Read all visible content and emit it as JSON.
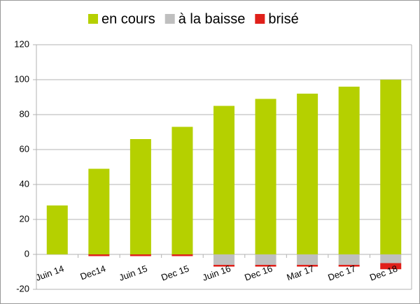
{
  "chart_data": {
    "type": "bar",
    "stacked": true,
    "categories": [
      "Juin 14",
      "Dec14",
      "Juin 15",
      "Dec 15",
      "Juin 16",
      "Dec 16",
      "Mar 17",
      "Dec 17",
      "Dec 18"
    ],
    "series": [
      {
        "name": "en cours",
        "color": "#b5d000",
        "values": [
          28,
          49,
          66,
          73,
          85,
          89,
          92,
          96,
          100
        ]
      },
      {
        "name": "à la baisse",
        "color": "#bfbfbf",
        "values": [
          0,
          0,
          0,
          0,
          -6,
          -6,
          -6,
          -6,
          -5
        ]
      },
      {
        "name": "brisé",
        "color": "#e0201a",
        "values": [
          0,
          -1,
          -1,
          -1,
          -1,
          -1,
          -1,
          -1,
          -3.5
        ]
      }
    ],
    "ylim": [
      -20,
      120
    ],
    "yticks": [
      -20,
      0,
      20,
      40,
      60,
      80,
      100,
      120
    ],
    "grid": true,
    "legend": "top"
  }
}
